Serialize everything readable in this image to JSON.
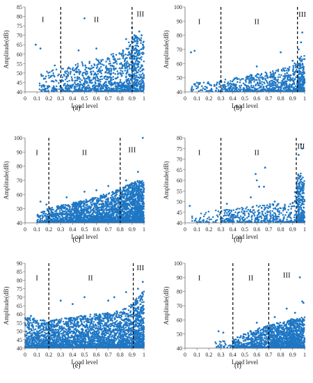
{
  "colors": {
    "points": "#1f77c4",
    "axis": "#666666",
    "divider": "#000000"
  },
  "chart_data": [
    {
      "type": "scatter",
      "panel_label": "(a)",
      "xlabel": "Load level",
      "ylabel": "Amplitude(dB)",
      "xlim": [
        0,
        1
      ],
      "ylim": [
        40,
        85
      ],
      "xticks": [
        "0",
        "0.1",
        "0.2",
        "0.3",
        "0.4",
        "0.5",
        "0.6",
        "0.7",
        "0.8",
        "0.9",
        "1"
      ],
      "yticks": [
        "40",
        "45",
        "50",
        "55",
        "60",
        "65",
        "70",
        "75",
        "80",
        "85"
      ],
      "dividers": [
        0.3,
        0.9
      ],
      "regions": [
        {
          "text": "I",
          "x": 0.15,
          "y": 77
        },
        {
          "text": "II",
          "x": 0.6,
          "y": 77
        },
        {
          "text": "III",
          "x": 0.97,
          "y": 80
        }
      ],
      "density": [
        [
          0.12,
          0.3,
          5
        ],
        [
          0.3,
          0.5,
          10
        ],
        [
          0.5,
          0.7,
          14
        ],
        [
          0.7,
          0.85,
          18
        ],
        [
          0.85,
          0.9,
          25
        ],
        [
          0.9,
          0.95,
          45
        ],
        [
          0.95,
          1,
          25
        ]
      ],
      "envelope": [
        [
          0.1,
          50
        ],
        [
          0.3,
          52
        ],
        [
          0.5,
          56
        ],
        [
          0.7,
          59
        ],
        [
          0.85,
          63
        ],
        [
          0.9,
          70
        ],
        [
          1,
          68
        ]
      ],
      "outliers": [
        [
          0.09,
          65
        ],
        [
          0.13,
          63
        ],
        [
          0.25,
          54
        ],
        [
          0.5,
          79
        ],
        [
          0.45,
          62
        ],
        [
          0.6,
          63
        ],
        [
          0.85,
          68
        ],
        [
          0.9,
          74
        ],
        [
          0.92,
          70
        ],
        [
          0.96,
          72
        ],
        [
          0.98,
          70
        ],
        [
          0.99,
          65
        ]
      ]
    },
    {
      "type": "scatter",
      "panel_label": "(b)",
      "xlabel": "Load level",
      "ylabel": "Amplitude(dB)",
      "xlim": [
        0,
        1
      ],
      "ylim": [
        40,
        100
      ],
      "xticks": [
        "0",
        "0.1",
        "0.2",
        "0.3",
        "0.4",
        "0.5",
        "0.6",
        "0.7",
        "0.8",
        "0.9",
        "1"
      ],
      "yticks": [
        "40",
        "50",
        "60",
        "70",
        "80",
        "90",
        "100"
      ],
      "dividers": [
        0.3,
        0.94
      ],
      "regions": [
        {
          "text": "I",
          "x": 0.12,
          "y": 88
        },
        {
          "text": "II",
          "x": 0.6,
          "y": 88
        },
        {
          "text": "III",
          "x": 0.98,
          "y": 93
        }
      ],
      "density": [
        [
          0.05,
          0.3,
          3
        ],
        [
          0.3,
          0.5,
          6
        ],
        [
          0.5,
          0.7,
          10
        ],
        [
          0.7,
          0.85,
          13
        ],
        [
          0.85,
          0.94,
          18
        ],
        [
          0.94,
          1,
          35
        ]
      ],
      "envelope": [
        [
          0.05,
          46
        ],
        [
          0.3,
          48
        ],
        [
          0.5,
          51
        ],
        [
          0.7,
          54
        ],
        [
          0.9,
          58
        ],
        [
          0.95,
          64
        ],
        [
          1,
          66
        ]
      ],
      "outliers": [
        [
          0.05,
          68
        ],
        [
          0.08,
          69
        ],
        [
          0.3,
          48
        ],
        [
          0.55,
          52
        ],
        [
          0.6,
          58
        ],
        [
          0.8,
          68
        ],
        [
          0.9,
          62
        ],
        [
          0.95,
          70
        ],
        [
          0.97,
          75
        ],
        [
          0.98,
          82
        ]
      ]
    },
    {
      "type": "scatter",
      "panel_label": "(c)",
      "xlabel": "Load level",
      "ylabel": "Amplitude(dB)",
      "xlim": [
        0,
        1
      ],
      "ylim": [
        40,
        100
      ],
      "xticks": [
        "0",
        "0.1",
        "0.2",
        "0.3",
        "0.4",
        "0.5",
        "0.6",
        "0.7",
        "0.8",
        "0.9",
        "1"
      ],
      "yticks": [
        "40",
        "50",
        "60",
        "70",
        "80",
        "90",
        "100"
      ],
      "dividers": [
        0.2,
        0.8
      ],
      "regions": [
        {
          "text": "I",
          "x": 0.1,
          "y": 88
        },
        {
          "text": "II",
          "x": 0.5,
          "y": 88
        },
        {
          "text": "III",
          "x": 0.9,
          "y": 90
        }
      ],
      "density": [
        [
          0.1,
          0.2,
          8
        ],
        [
          0.2,
          0.4,
          18
        ],
        [
          0.4,
          0.6,
          28
        ],
        [
          0.6,
          0.8,
          35
        ],
        [
          0.8,
          0.9,
          50
        ],
        [
          0.9,
          1,
          70
        ]
      ],
      "envelope": [
        [
          0.1,
          47
        ],
        [
          0.2,
          50
        ],
        [
          0.4,
          54
        ],
        [
          0.6,
          58
        ],
        [
          0.8,
          64
        ],
        [
          0.9,
          68
        ],
        [
          1,
          72
        ]
      ],
      "outliers": [
        [
          0.13,
          55
        ],
        [
          0.18,
          53
        ],
        [
          0.35,
          58
        ],
        [
          0.5,
          62
        ],
        [
          0.6,
          63
        ],
        [
          0.7,
          66
        ],
        [
          0.85,
          70
        ],
        [
          0.95,
          76
        ],
        [
          0.99,
          100
        ]
      ]
    },
    {
      "type": "scatter",
      "panel_label": "(d)",
      "xlabel": "Load level",
      "ylabel": "Amplitude(dB)",
      "xlim": [
        0,
        1
      ],
      "ylim": [
        40,
        80
      ],
      "xticks": [
        "0",
        "0.1",
        "0.2",
        "0.3",
        "0.4",
        "0.5",
        "0.6",
        "0.7",
        "0.8",
        "0.9",
        "1"
      ],
      "yticks": [
        "40",
        "45",
        "50",
        "55",
        "60",
        "65",
        "70",
        "75",
        "80"
      ],
      "dividers": [
        0.3,
        0.93
      ],
      "regions": [
        {
          "text": "I",
          "x": 0.12,
          "y": 72
        },
        {
          "text": "II",
          "x": 0.6,
          "y": 72
        },
        {
          "text": "III",
          "x": 0.97,
          "y": 75
        }
      ],
      "density": [
        [
          0.05,
          0.3,
          2
        ],
        [
          0.3,
          0.6,
          6
        ],
        [
          0.6,
          0.93,
          7
        ],
        [
          0.93,
          1,
          40
        ]
      ],
      "envelope": [
        [
          0.05,
          44
        ],
        [
          0.3,
          46
        ],
        [
          0.6,
          48
        ],
        [
          0.9,
          50
        ],
        [
          0.95,
          65
        ],
        [
          1,
          60
        ]
      ],
      "outliers": [
        [
          0.04,
          48
        ],
        [
          0.35,
          49
        ],
        [
          0.55,
          52
        ],
        [
          0.59,
          63
        ],
        [
          0.6,
          60
        ],
        [
          0.62,
          57
        ],
        [
          0.66,
          57
        ],
        [
          0.67,
          66
        ],
        [
          0.75,
          50
        ],
        [
          0.95,
          72
        ],
        [
          0.97,
          77
        ],
        [
          0.98,
          75
        ]
      ]
    },
    {
      "type": "scatter",
      "panel_label": "(e)",
      "xlabel": "Load level",
      "ylabel": "Amplitude(dB)",
      "xlim": [
        0,
        1
      ],
      "ylim": [
        40,
        90
      ],
      "xticks": [
        "0",
        "0.1",
        "0.2",
        "0.3",
        "0.4",
        "0.5",
        "0.6",
        "0.7",
        "0.8",
        "0.9",
        "1"
      ],
      "yticks": [
        "40",
        "45",
        "50",
        "55",
        "60",
        "65",
        "70",
        "75",
        "80",
        "85",
        "90"
      ],
      "dividers": [
        0.2,
        0.91
      ],
      "regions": [
        {
          "text": "I",
          "x": 0.1,
          "y": 80
        },
        {
          "text": "II",
          "x": 0.55,
          "y": 80
        },
        {
          "text": "III",
          "x": 0.97,
          "y": 86
        }
      ],
      "density": [
        [
          0,
          0.2,
          25
        ],
        [
          0.2,
          0.4,
          30
        ],
        [
          0.4,
          0.6,
          32
        ],
        [
          0.6,
          0.8,
          35
        ],
        [
          0.8,
          0.91,
          35
        ],
        [
          0.91,
          1,
          55
        ]
      ],
      "envelope": [
        [
          0,
          58
        ],
        [
          0.2,
          56
        ],
        [
          0.4,
          58
        ],
        [
          0.6,
          60
        ],
        [
          0.8,
          62
        ],
        [
          0.9,
          66
        ],
        [
          1,
          74
        ]
      ],
      "outliers": [
        [
          0.02,
          57
        ],
        [
          0.05,
          59
        ],
        [
          0.3,
          68
        ],
        [
          0.4,
          66
        ],
        [
          0.5,
          70
        ],
        [
          0.7,
          68
        ],
        [
          0.75,
          70
        ],
        [
          0.85,
          73
        ],
        [
          0.95,
          75
        ],
        [
          0.99,
          79
        ]
      ]
    },
    {
      "type": "scatter",
      "panel_label": "(f)",
      "xlabel": "Load level",
      "ylabel": "Amplitude(dB)",
      "xlim": [
        0,
        1
      ],
      "ylim": [
        40,
        100
      ],
      "xticks": [
        "0",
        "0.1",
        "0.2",
        "0.3",
        "0.4",
        "0.5",
        "0.6",
        "0.7",
        "0.8",
        "0.9",
        "1"
      ],
      "yticks": [
        "40",
        "50",
        "60",
        "70",
        "80",
        "90",
        "100"
      ],
      "dividers": [
        0.4,
        0.7
      ],
      "regions": [
        {
          "text": "I",
          "x": 0.12,
          "y": 88
        },
        {
          "text": "II",
          "x": 0.55,
          "y": 88
        },
        {
          "text": "III",
          "x": 0.85,
          "y": 90
        }
      ],
      "density": [
        [
          0.25,
          0.4,
          2
        ],
        [
          0.4,
          0.55,
          10
        ],
        [
          0.55,
          0.7,
          22
        ],
        [
          0.7,
          0.85,
          35
        ],
        [
          0.85,
          1,
          45
        ]
      ],
      "envelope": [
        [
          0.25,
          44
        ],
        [
          0.4,
          46
        ],
        [
          0.55,
          52
        ],
        [
          0.7,
          56
        ],
        [
          0.85,
          60
        ],
        [
          1,
          62
        ]
      ],
      "outliers": [
        [
          0.28,
          52
        ],
        [
          0.32,
          51
        ],
        [
          0.42,
          44
        ],
        [
          0.6,
          58
        ],
        [
          0.75,
          62
        ],
        [
          0.85,
          68
        ],
        [
          0.92,
          65
        ],
        [
          0.96,
          90
        ],
        [
          0.98,
          73
        ],
        [
          0.99,
          72
        ]
      ]
    }
  ]
}
